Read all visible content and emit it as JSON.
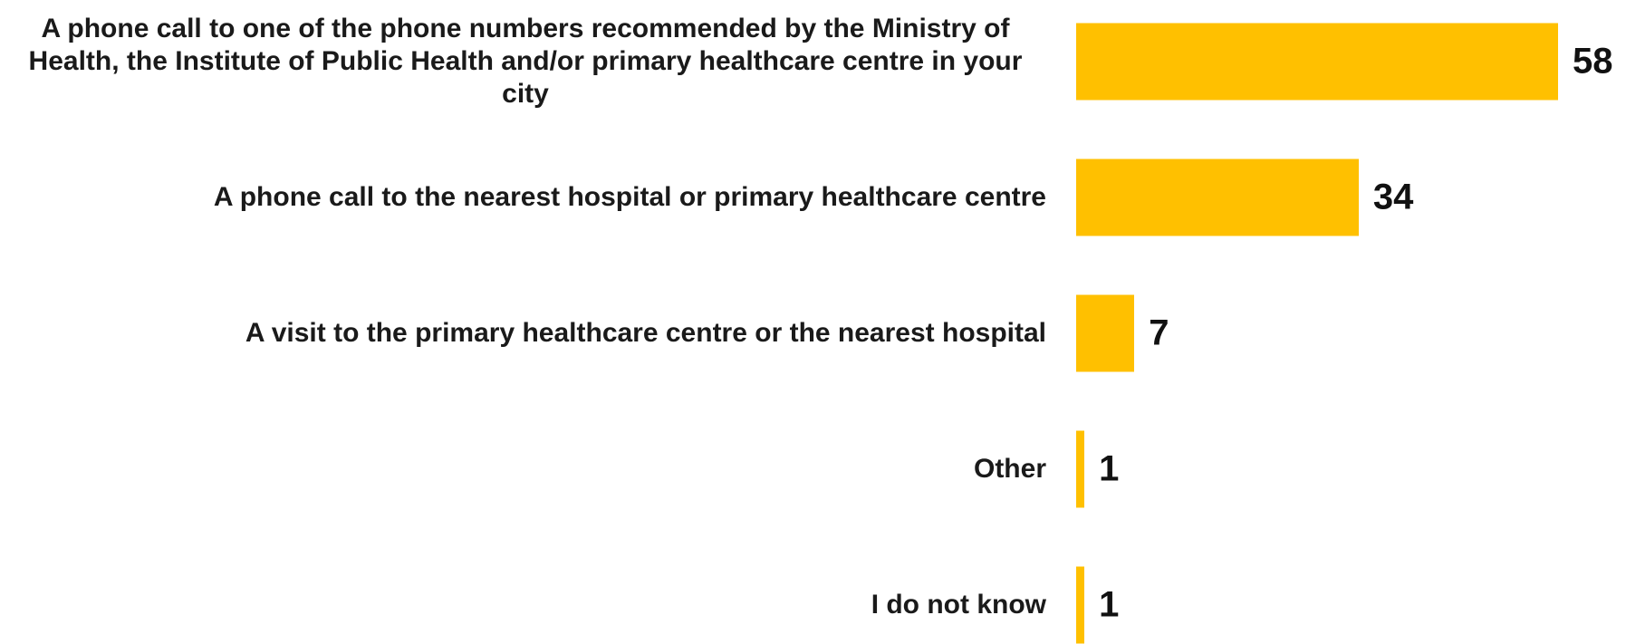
{
  "chart_data": {
    "type": "bar",
    "orientation": "horizontal",
    "categories": [
      "A phone call to one of the phone numbers recommended by the Ministry of Health, the Institute of Public Health and/or primary healthcare centre in your city",
      "A phone call to the nearest hospital or primary healthcare centre",
      "A visit to the primary healthcare centre or the nearest hospital",
      "Other",
      "I do not know"
    ],
    "values": [
      58,
      34,
      7,
      1,
      1
    ],
    "color": "#ffc000"
  }
}
